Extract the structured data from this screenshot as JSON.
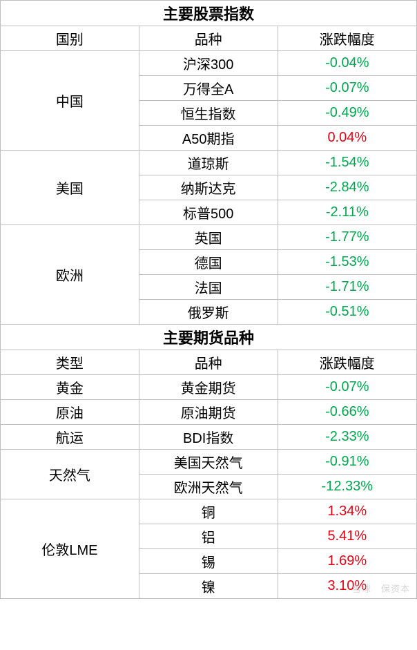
{
  "colors": {
    "border": "#bfbfbf",
    "text": "#000000",
    "negative": "#00a84f",
    "positive": "#e60012",
    "background": "#ffffff"
  },
  "section1": {
    "title": "主要股票指数",
    "headers": {
      "col1": "国别",
      "col2": "品种",
      "col3": "涨跌幅度"
    },
    "groups": [
      {
        "region": "中国",
        "rows": [
          {
            "product": "沪深300",
            "change": "-0.04%",
            "dir": "neg"
          },
          {
            "product": "万得全A",
            "change": "-0.07%",
            "dir": "neg"
          },
          {
            "product": "恒生指数",
            "change": "-0.49%",
            "dir": "neg"
          },
          {
            "product": "A50期指",
            "change": "0.04%",
            "dir": "pos"
          }
        ]
      },
      {
        "region": "美国",
        "rows": [
          {
            "product": "道琼斯",
            "change": "-1.54%",
            "dir": "neg"
          },
          {
            "product": "纳斯达克",
            "change": "-2.84%",
            "dir": "neg"
          },
          {
            "product": "标普500",
            "change": "-2.11%",
            "dir": "neg"
          }
        ]
      },
      {
        "region": "欧洲",
        "rows": [
          {
            "product": "英国",
            "change": "-1.77%",
            "dir": "neg"
          },
          {
            "product": "德国",
            "change": "-1.53%",
            "dir": "neg"
          },
          {
            "product": "法国",
            "change": "-1.71%",
            "dir": "neg"
          },
          {
            "product": "俄罗斯",
            "change": "-0.51%",
            "dir": "neg"
          }
        ]
      }
    ]
  },
  "section2": {
    "title": "主要期货品种",
    "headers": {
      "col1": "类型",
      "col2": "品种",
      "col3": "涨跌幅度"
    },
    "groups": [
      {
        "region": "黄金",
        "rows": [
          {
            "product": "黄金期货",
            "change": "-0.07%",
            "dir": "neg"
          }
        ]
      },
      {
        "region": "原油",
        "rows": [
          {
            "product": "原油期货",
            "change": "-0.66%",
            "dir": "neg"
          }
        ]
      },
      {
        "region": "航运",
        "rows": [
          {
            "product": "BDI指数",
            "change": "-2.33%",
            "dir": "neg"
          }
        ]
      },
      {
        "region": "天然气",
        "rows": [
          {
            "product": "美国天然气",
            "change": "-0.91%",
            "dir": "neg"
          },
          {
            "product": "欧洲天然气",
            "change": "-12.33%",
            "dir": "neg"
          }
        ]
      },
      {
        "region": "伦敦LME",
        "rows": [
          {
            "product": "铜",
            "change": "1.34%",
            "dir": "pos"
          },
          {
            "product": "铝",
            "change": "5.41%",
            "dir": "pos"
          },
          {
            "product": "锡",
            "change": "1.69%",
            "dir": "pos"
          },
          {
            "product": "镍",
            "change": "3.10%",
            "dir": "pos"
          }
        ]
      }
    ]
  },
  "watermark": "雪球　保资本"
}
